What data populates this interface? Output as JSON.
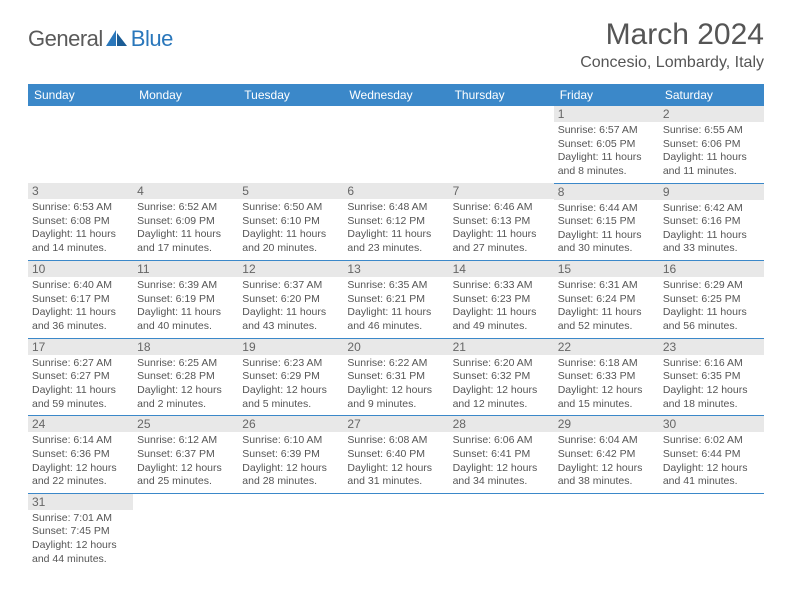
{
  "brand": {
    "general": "General",
    "blue": "Blue"
  },
  "header": {
    "title": "March 2024",
    "location": "Concesio, Lombardy, Italy"
  },
  "colors": {
    "header_bg": "#3b88c9",
    "header_fg": "#ffffff",
    "daynum_bg": "#e8e8e8",
    "text": "#555555",
    "rule": "#3b88c9",
    "brand_blue": "#2a77bb"
  },
  "weekdays": [
    "Sunday",
    "Monday",
    "Tuesday",
    "Wednesday",
    "Thursday",
    "Friday",
    "Saturday"
  ],
  "weeks": [
    [
      null,
      null,
      null,
      null,
      null,
      {
        "n": "1",
        "sr": "Sunrise: 6:57 AM",
        "ss": "Sunset: 6:05 PM",
        "d1": "Daylight: 11 hours",
        "d2": "and 8 minutes."
      },
      {
        "n": "2",
        "sr": "Sunrise: 6:55 AM",
        "ss": "Sunset: 6:06 PM",
        "d1": "Daylight: 11 hours",
        "d2": "and 11 minutes."
      }
    ],
    [
      {
        "n": "3",
        "sr": "Sunrise: 6:53 AM",
        "ss": "Sunset: 6:08 PM",
        "d1": "Daylight: 11 hours",
        "d2": "and 14 minutes."
      },
      {
        "n": "4",
        "sr": "Sunrise: 6:52 AM",
        "ss": "Sunset: 6:09 PM",
        "d1": "Daylight: 11 hours",
        "d2": "and 17 minutes."
      },
      {
        "n": "5",
        "sr": "Sunrise: 6:50 AM",
        "ss": "Sunset: 6:10 PM",
        "d1": "Daylight: 11 hours",
        "d2": "and 20 minutes."
      },
      {
        "n": "6",
        "sr": "Sunrise: 6:48 AM",
        "ss": "Sunset: 6:12 PM",
        "d1": "Daylight: 11 hours",
        "d2": "and 23 minutes."
      },
      {
        "n": "7",
        "sr": "Sunrise: 6:46 AM",
        "ss": "Sunset: 6:13 PM",
        "d1": "Daylight: 11 hours",
        "d2": "and 27 minutes."
      },
      {
        "n": "8",
        "sr": "Sunrise: 6:44 AM",
        "ss": "Sunset: 6:15 PM",
        "d1": "Daylight: 11 hours",
        "d2": "and 30 minutes."
      },
      {
        "n": "9",
        "sr": "Sunrise: 6:42 AM",
        "ss": "Sunset: 6:16 PM",
        "d1": "Daylight: 11 hours",
        "d2": "and 33 minutes."
      }
    ],
    [
      {
        "n": "10",
        "sr": "Sunrise: 6:40 AM",
        "ss": "Sunset: 6:17 PM",
        "d1": "Daylight: 11 hours",
        "d2": "and 36 minutes."
      },
      {
        "n": "11",
        "sr": "Sunrise: 6:39 AM",
        "ss": "Sunset: 6:19 PM",
        "d1": "Daylight: 11 hours",
        "d2": "and 40 minutes."
      },
      {
        "n": "12",
        "sr": "Sunrise: 6:37 AM",
        "ss": "Sunset: 6:20 PM",
        "d1": "Daylight: 11 hours",
        "d2": "and 43 minutes."
      },
      {
        "n": "13",
        "sr": "Sunrise: 6:35 AM",
        "ss": "Sunset: 6:21 PM",
        "d1": "Daylight: 11 hours",
        "d2": "and 46 minutes."
      },
      {
        "n": "14",
        "sr": "Sunrise: 6:33 AM",
        "ss": "Sunset: 6:23 PM",
        "d1": "Daylight: 11 hours",
        "d2": "and 49 minutes."
      },
      {
        "n": "15",
        "sr": "Sunrise: 6:31 AM",
        "ss": "Sunset: 6:24 PM",
        "d1": "Daylight: 11 hours",
        "d2": "and 52 minutes."
      },
      {
        "n": "16",
        "sr": "Sunrise: 6:29 AM",
        "ss": "Sunset: 6:25 PM",
        "d1": "Daylight: 11 hours",
        "d2": "and 56 minutes."
      }
    ],
    [
      {
        "n": "17",
        "sr": "Sunrise: 6:27 AM",
        "ss": "Sunset: 6:27 PM",
        "d1": "Daylight: 11 hours",
        "d2": "and 59 minutes."
      },
      {
        "n": "18",
        "sr": "Sunrise: 6:25 AM",
        "ss": "Sunset: 6:28 PM",
        "d1": "Daylight: 12 hours",
        "d2": "and 2 minutes."
      },
      {
        "n": "19",
        "sr": "Sunrise: 6:23 AM",
        "ss": "Sunset: 6:29 PM",
        "d1": "Daylight: 12 hours",
        "d2": "and 5 minutes."
      },
      {
        "n": "20",
        "sr": "Sunrise: 6:22 AM",
        "ss": "Sunset: 6:31 PM",
        "d1": "Daylight: 12 hours",
        "d2": "and 9 minutes."
      },
      {
        "n": "21",
        "sr": "Sunrise: 6:20 AM",
        "ss": "Sunset: 6:32 PM",
        "d1": "Daylight: 12 hours",
        "d2": "and 12 minutes."
      },
      {
        "n": "22",
        "sr": "Sunrise: 6:18 AM",
        "ss": "Sunset: 6:33 PM",
        "d1": "Daylight: 12 hours",
        "d2": "and 15 minutes."
      },
      {
        "n": "23",
        "sr": "Sunrise: 6:16 AM",
        "ss": "Sunset: 6:35 PM",
        "d1": "Daylight: 12 hours",
        "d2": "and 18 minutes."
      }
    ],
    [
      {
        "n": "24",
        "sr": "Sunrise: 6:14 AM",
        "ss": "Sunset: 6:36 PM",
        "d1": "Daylight: 12 hours",
        "d2": "and 22 minutes."
      },
      {
        "n": "25",
        "sr": "Sunrise: 6:12 AM",
        "ss": "Sunset: 6:37 PM",
        "d1": "Daylight: 12 hours",
        "d2": "and 25 minutes."
      },
      {
        "n": "26",
        "sr": "Sunrise: 6:10 AM",
        "ss": "Sunset: 6:39 PM",
        "d1": "Daylight: 12 hours",
        "d2": "and 28 minutes."
      },
      {
        "n": "27",
        "sr": "Sunrise: 6:08 AM",
        "ss": "Sunset: 6:40 PM",
        "d1": "Daylight: 12 hours",
        "d2": "and 31 minutes."
      },
      {
        "n": "28",
        "sr": "Sunrise: 6:06 AM",
        "ss": "Sunset: 6:41 PM",
        "d1": "Daylight: 12 hours",
        "d2": "and 34 minutes."
      },
      {
        "n": "29",
        "sr": "Sunrise: 6:04 AM",
        "ss": "Sunset: 6:42 PM",
        "d1": "Daylight: 12 hours",
        "d2": "and 38 minutes."
      },
      {
        "n": "30",
        "sr": "Sunrise: 6:02 AM",
        "ss": "Sunset: 6:44 PM",
        "d1": "Daylight: 12 hours",
        "d2": "and 41 minutes."
      }
    ],
    [
      {
        "n": "31",
        "sr": "Sunrise: 7:01 AM",
        "ss": "Sunset: 7:45 PM",
        "d1": "Daylight: 12 hours",
        "d2": "and 44 minutes."
      },
      null,
      null,
      null,
      null,
      null,
      null
    ]
  ]
}
